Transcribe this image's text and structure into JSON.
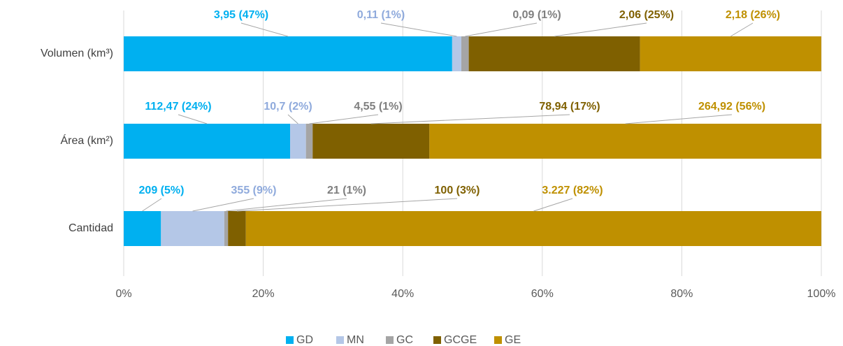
{
  "chart_data": {
    "type": "bar",
    "orientation": "horizontal",
    "stacked": true,
    "categories": [
      "Volumen (km³)",
      "Área (km²)",
      "Cantidad"
    ],
    "series": [
      {
        "name": "GD",
        "color": "#00b0f0",
        "values": [
          47.08,
          23.85,
          5.34
        ],
        "value_labels": [
          "3,95 (47%)",
          "112,47 (24%)",
          "209 (5%)"
        ]
      },
      {
        "name": "MN",
        "color": "#b4c7e7",
        "values": [
          1.31,
          2.27,
          9.07
        ],
        "value_labels": [
          "0,11 (1%)",
          "10,7 (2%)",
          "355 (9%)"
        ]
      },
      {
        "name": "GC",
        "color": "#a5a5a5",
        "values": [
          1.07,
          0.96,
          0.54
        ],
        "value_labels": [
          "0,09 (1%)",
          "4,55 (1%)",
          "21 (1%)"
        ]
      },
      {
        "name": "GCGE",
        "color": "#7f6000",
        "values": [
          24.55,
          16.74,
          2.56
        ],
        "value_labels": [
          "2,06 (25%)",
          "78,94 (17%)",
          "100 (3%)"
        ]
      },
      {
        "name": "GE",
        "color": "#bf9000",
        "values": [
          25.98,
          56.18,
          82.49
        ],
        "value_labels": [
          "2,18 (26%)",
          "264,92 (56%)",
          "3.227 (82%)"
        ]
      }
    ],
    "xlim": [
      0,
      100
    ],
    "xticks": [
      {
        "value": 0,
        "label": "0%"
      },
      {
        "value": 20,
        "label": "20%"
      },
      {
        "value": 40,
        "label": "40%"
      },
      {
        "value": 60,
        "label": "60%"
      },
      {
        "value": 80,
        "label": "80%"
      },
      {
        "value": 100,
        "label": "100%"
      }
    ],
    "grid": true,
    "legend": "bottom"
  }
}
